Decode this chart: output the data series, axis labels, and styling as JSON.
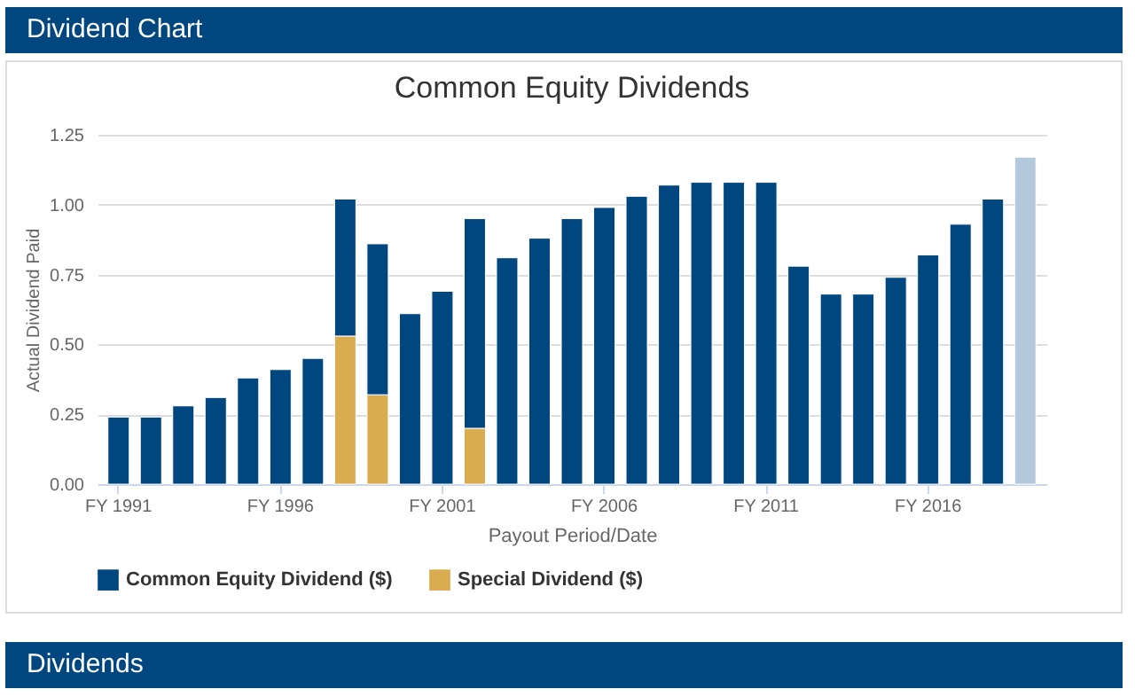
{
  "chart_data": {
    "type": "bar",
    "title": "Common Equity Dividends",
    "xlabel": "Payout Period/Date",
    "ylabel": "Actual Dividend Paid",
    "annotations": [
      "Dividend Chart",
      "Dividends"
    ],
    "categories": [
      "FY 1991",
      null,
      null,
      null,
      null,
      "FY 1996",
      null,
      null,
      null,
      null,
      "FY 2001",
      null,
      null,
      null,
      null,
      "FY 2006",
      null,
      null,
      null,
      null,
      "FY 2011",
      null,
      null,
      null,
      null,
      "FY 2016",
      null,
      null,
      null
    ],
    "stacked": true,
    "series": [
      {
        "name": "Special Dividend ($)",
        "color": "#d9ac4f",
        "values": [
          null,
          null,
          null,
          null,
          null,
          null,
          null,
          0.53,
          0.32,
          null,
          null,
          0.2,
          null,
          null,
          null,
          null,
          null,
          null,
          null,
          null,
          null,
          null,
          null,
          null,
          null,
          null,
          null,
          null,
          null
        ]
      },
      {
        "name": "Common Equity Dividend ($)",
        "color": "#00467f",
        "colors": [
          "#00467f",
          "#00467f",
          "#00467f",
          "#00467f",
          "#00467f",
          "#00467f",
          "#00467f",
          "#00467f",
          "#00467f",
          "#00467f",
          "#00467f",
          "#00467f",
          "#00467f",
          "#00467f",
          "#00467f",
          "#00467f",
          "#00467f",
          "#00467f",
          "#00467f",
          "#00467f",
          "#00467f",
          "#00467f",
          "#00467f",
          "#00467f",
          "#00467f",
          "#00467f",
          "#00467f",
          "#00467f",
          "#b4c8dc"
        ],
        "values": [
          0.24,
          0.24,
          0.28,
          0.31,
          0.38,
          0.41,
          0.45,
          0.49,
          0.54,
          0.61,
          0.69,
          0.75,
          0.81,
          0.88,
          0.95,
          0.99,
          1.03,
          1.07,
          1.08,
          1.08,
          1.08,
          0.78,
          0.68,
          0.68,
          0.74,
          0.82,
          0.93,
          1.02,
          1.17
        ]
      }
    ],
    "ylim": [
      0,
      1.25
    ],
    "yticks": [
      {
        "value": 0,
        "label": "0.00"
      },
      {
        "value": 0.25,
        "label": "0.25"
      },
      {
        "value": 0.5,
        "label": "0.50"
      },
      {
        "value": 0.75,
        "label": "0.75"
      },
      {
        "value": 1,
        "label": "1.00"
      },
      {
        "value": 1.25,
        "label": "1.25"
      }
    ],
    "grid": "y",
    "legend": "bottom"
  }
}
